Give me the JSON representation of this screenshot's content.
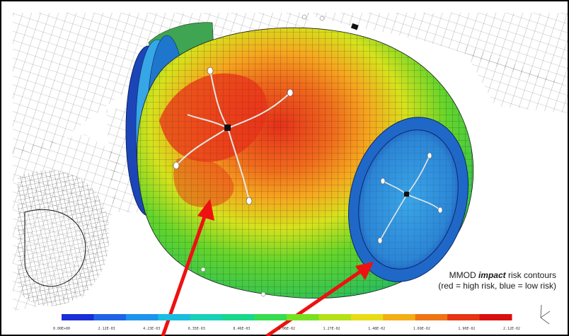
{
  "caption": {
    "line1_prefix": "MMOD ",
    "line1_emph": "impact",
    "line1_suffix": " risk contours",
    "line2": "(red = high risk, blue = low risk)"
  },
  "colorbar": {
    "colors": [
      "#1a2fd6",
      "#1f63e6",
      "#1e94ec",
      "#19bde0",
      "#18d1b7",
      "#19d78b",
      "#37dc4f",
      "#78e022",
      "#b4e119",
      "#e6dd17",
      "#f3ad16",
      "#ef7415",
      "#e63414",
      "#d91010"
    ],
    "tick_labels": [
      "0.00E+00",
      "2.12E-03",
      "4.23E-03",
      "6.35E-03",
      "8.46E-03",
      "1.06E-02",
      "1.27E-02",
      "1.48E-02",
      "1.69E-02",
      "1.90E-02",
      "2.12E-02"
    ]
  },
  "scene": {
    "body_colors": {
      "hot_core": "#e8321a",
      "hot": "#f06a1c",
      "warm": "#f5a51d",
      "mid": "#d6e21c",
      "cool": "#62d62a",
      "end_cap": "#2f8fd8",
      "ring_dark": "#1c46b8",
      "ring_light": "#36a6e6"
    },
    "icons": [
      "axis-triad-icon"
    ]
  }
}
